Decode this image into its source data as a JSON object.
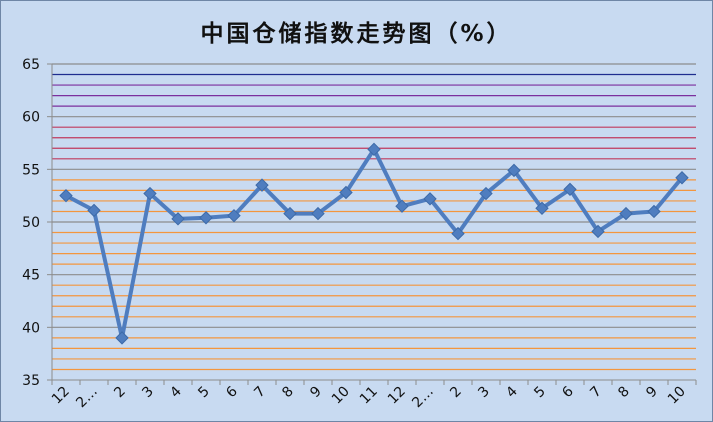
{
  "chart_data": {
    "type": "line",
    "title": "中国仓储指数走势图（%）",
    "xlabel": "",
    "ylabel": "",
    "ylim": [
      35,
      65
    ],
    "y_ticks": [
      "35",
      "40",
      "45",
      "50",
      "55",
      "60",
      "65"
    ],
    "categories": [
      "12",
      "2…",
      "2",
      "3",
      "4",
      "5",
      "6",
      "7",
      "8",
      "9",
      "10",
      "11",
      "12",
      "2…",
      "2",
      "3",
      "4",
      "5",
      "6",
      "7",
      "8",
      "9",
      "10"
    ],
    "series": [
      {
        "values": [
          52.5,
          51.1,
          39.0,
          52.7,
          50.3,
          50.4,
          50.6,
          53.5,
          50.8,
          50.8,
          52.8,
          56.9,
          51.5,
          52.2,
          48.9,
          52.7,
          54.9,
          51.3,
          53.1,
          49.1,
          50.8,
          51.0,
          54.2
        ],
        "color": "#4f7dbf"
      }
    ],
    "grid": true,
    "gridline_colors": {
      "35_55": "#f3963f",
      "55_60": "#c0395e",
      "60_65": "#7b2f9e",
      "64": "#1f2d8f"
    },
    "legend": "none"
  },
  "colors": {
    "background": "#c8daf1",
    "border": "#6f86a6"
  }
}
